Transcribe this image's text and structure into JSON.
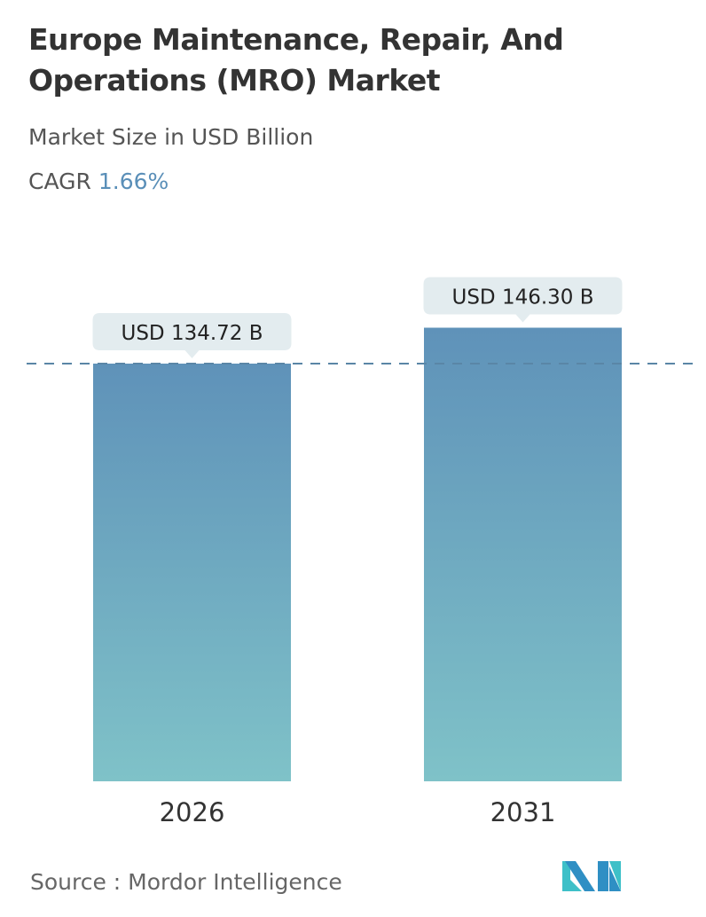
{
  "title": "Europe Maintenance, Repair, And Operations (MRO) Market",
  "subtitle": "Market Size in USD Billion",
  "cagr_label": "CAGR",
  "cagr_value": "1.66%",
  "source": "Source :  Mordor Intelligence",
  "colors": {
    "bar_top": "#5f92b9",
    "bar_bottom": "#7fc2c8",
    "callout": "#e3ecef",
    "dashed_line": "#5a86a6",
    "cagr": "#5a8fb8"
  },
  "chart_data": {
    "type": "bar",
    "categories": [
      "2026",
      "2031"
    ],
    "values": [
      134.72,
      146.3
    ],
    "data_labels": [
      "USD 134.72 B",
      "USD 146.30 B"
    ],
    "reference_line": 134.72,
    "unit": "USD Billion",
    "grid": false
  }
}
